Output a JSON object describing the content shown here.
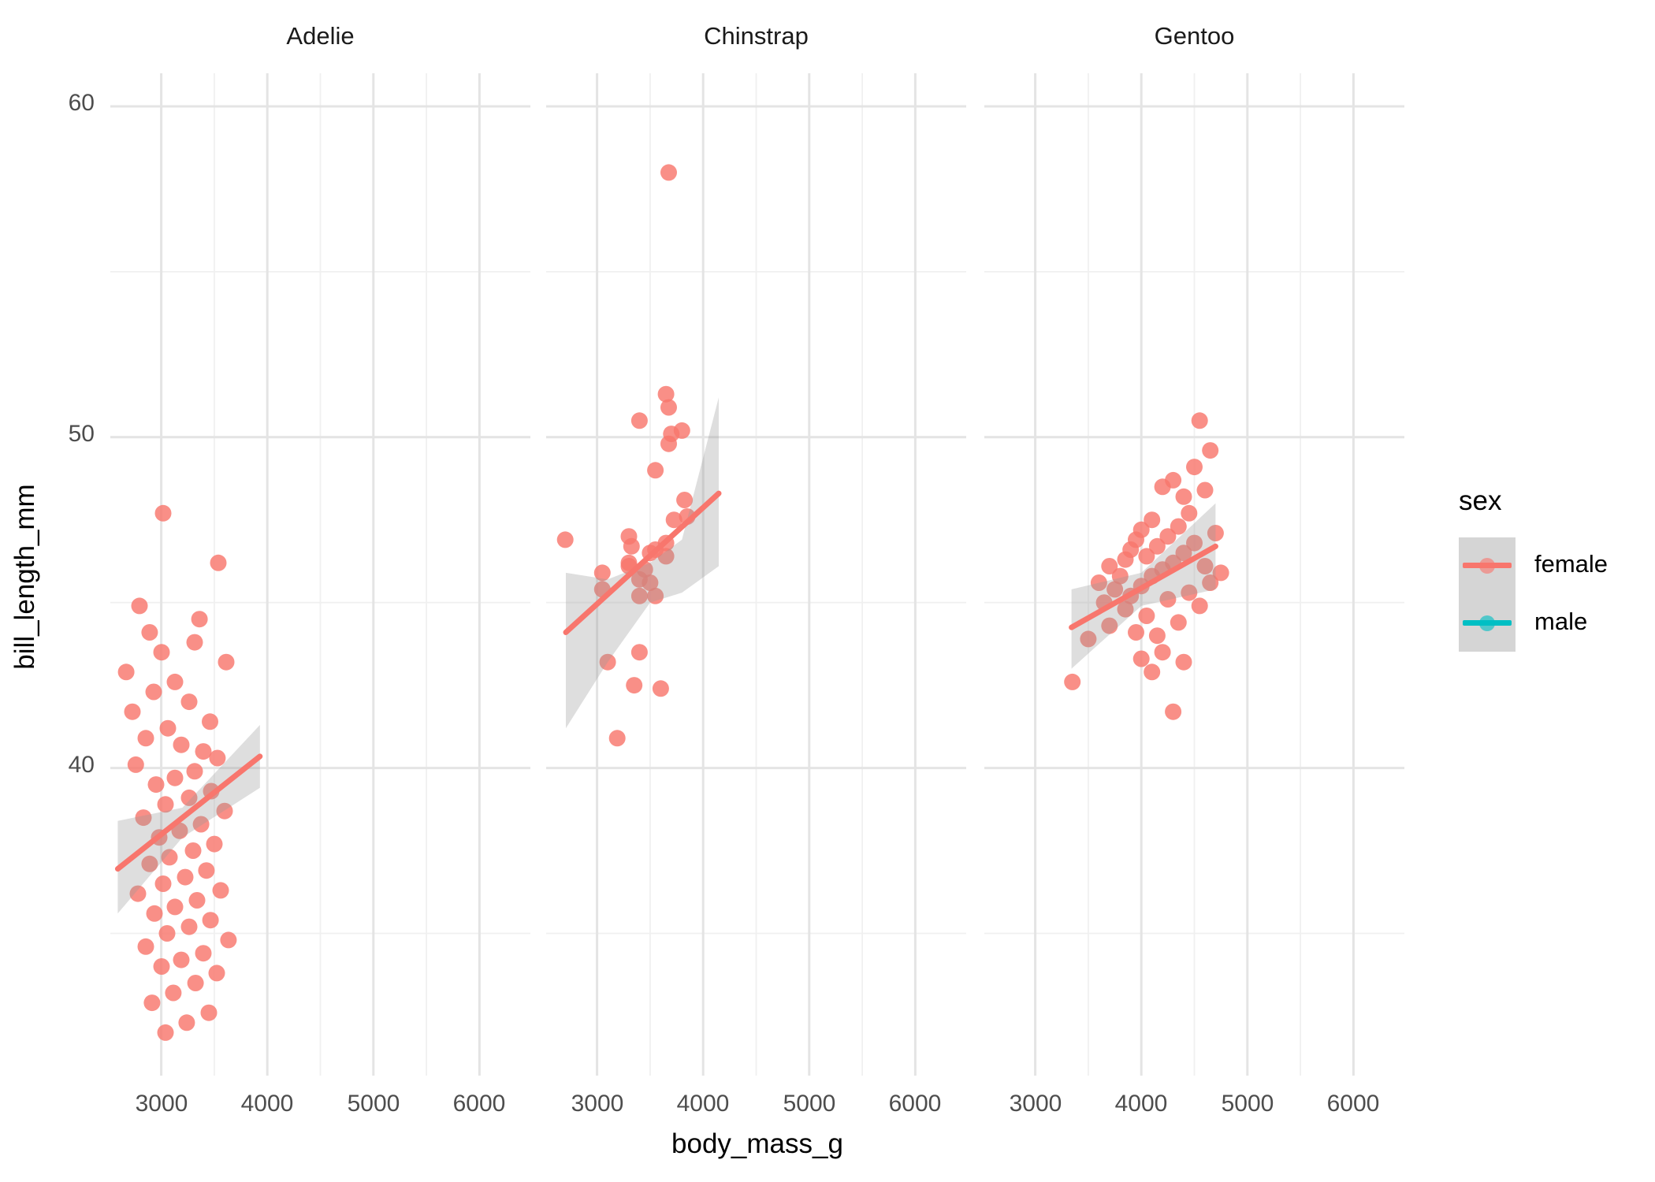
{
  "figure": {
    "x_axis_title": "body_mass_g",
    "y_axis_title": "bill_length_mm",
    "legend": {
      "title": "sex",
      "items": [
        {
          "label": "female",
          "color": "#F8766D"
        },
        {
          "label": "male",
          "color": "#00BFC4"
        }
      ]
    }
  },
  "chart_data": {
    "type": "scatter",
    "title": "",
    "xlabel": "body_mass_g",
    "ylabel": "bill_length_mm",
    "x_range": [
      2520,
      6480
    ],
    "y_range": [
      30.7,
      61.0
    ],
    "x_major_ticks": [
      3000,
      4000,
      5000,
      6000
    ],
    "x_minor_ticks": [
      3500,
      4500,
      5500
    ],
    "y_major_ticks": [
      40,
      50,
      60
    ],
    "y_minor_ticks": [
      35,
      45,
      55
    ],
    "grid": "on",
    "legend_position": "right",
    "point_color": "#F8766D",
    "male_color": "#00BFC4",
    "ribbon_rgb": "153,153,153",
    "ribbon_alpha": 0.32,
    "major_grid_color": "#E4E4E4",
    "minor_grid_color": "#F0F0F0",
    "facets": [
      {
        "label": "Adelie",
        "points": [
          [
            3018,
            47.7
          ],
          [
            3538,
            46.2
          ],
          [
            2795,
            44.9
          ],
          [
            3360,
            44.5
          ],
          [
            2891,
            44.1
          ],
          [
            3315,
            43.8
          ],
          [
            3003,
            43.5
          ],
          [
            3612,
            43.2
          ],
          [
            2669,
            42.9
          ],
          [
            3129,
            42.6
          ],
          [
            2929,
            42.3
          ],
          [
            3263,
            42.0
          ],
          [
            2728,
            41.7
          ],
          [
            3460,
            41.4
          ],
          [
            3062,
            41.2
          ],
          [
            2854,
            40.9
          ],
          [
            3189,
            40.7
          ],
          [
            3397,
            40.5
          ],
          [
            3530,
            40.3
          ],
          [
            2760,
            40.1
          ],
          [
            3315,
            39.9
          ],
          [
            3129,
            39.7
          ],
          [
            2951,
            39.5
          ],
          [
            3471,
            39.3
          ],
          [
            3263,
            39.1
          ],
          [
            3040,
            38.9
          ],
          [
            3597,
            38.7
          ],
          [
            2832,
            38.5
          ],
          [
            3375,
            38.3
          ],
          [
            3174,
            38.1
          ],
          [
            2981,
            37.9
          ],
          [
            3501,
            37.7
          ],
          [
            3300,
            37.5
          ],
          [
            3077,
            37.3
          ],
          [
            2891,
            37.1
          ],
          [
            3426,
            36.9
          ],
          [
            3226,
            36.7
          ],
          [
            3018,
            36.5
          ],
          [
            3560,
            36.3
          ],
          [
            2780,
            36.2
          ],
          [
            3337,
            36.0
          ],
          [
            3129,
            35.8
          ],
          [
            2936,
            35.6
          ],
          [
            3464,
            35.4
          ],
          [
            3263,
            35.2
          ],
          [
            3055,
            35.0
          ],
          [
            3634,
            34.8
          ],
          [
            2854,
            34.6
          ],
          [
            3397,
            34.4
          ],
          [
            3189,
            34.2
          ],
          [
            3003,
            34.0
          ],
          [
            3523,
            33.8
          ],
          [
            3323,
            33.5
          ],
          [
            3114,
            33.2
          ],
          [
            2913,
            32.9
          ],
          [
            3449,
            32.6
          ],
          [
            3240,
            32.3
          ],
          [
            3040,
            32.0
          ]
        ],
        "line": [
          [
            2590,
            36.95
          ],
          [
            3930,
            40.35
          ]
        ],
        "ribbon_upper": [
          [
            2590,
            38.4
          ],
          [
            3200,
            38.8
          ],
          [
            3930,
            41.3
          ]
        ],
        "ribbon_lower": [
          [
            3930,
            39.4
          ],
          [
            3200,
            37.9
          ],
          [
            2590,
            35.6
          ]
        ]
      },
      {
        "label": "Chinstrap",
        "points": [
          [
            3675,
            58.0
          ],
          [
            3650,
            51.3
          ],
          [
            3675,
            50.9
          ],
          [
            3400,
            50.5
          ],
          [
            3800,
            50.2
          ],
          [
            3700,
            50.1
          ],
          [
            3675,
            49.8
          ],
          [
            3550,
            49.0
          ],
          [
            3825,
            48.1
          ],
          [
            3850,
            47.6
          ],
          [
            3725,
            47.5
          ],
          [
            3300,
            47.0
          ],
          [
            2700,
            46.9
          ],
          [
            3325,
            46.7
          ],
          [
            3650,
            46.8
          ],
          [
            3550,
            46.6
          ],
          [
            3500,
            46.5
          ],
          [
            3650,
            46.4
          ],
          [
            3300,
            46.2
          ],
          [
            3300,
            46.1
          ],
          [
            3450,
            46.0
          ],
          [
            3050,
            45.9
          ],
          [
            3400,
            45.7
          ],
          [
            3500,
            45.6
          ],
          [
            3050,
            45.4
          ],
          [
            3550,
            45.2
          ],
          [
            3400,
            45.2
          ],
          [
            3400,
            43.5
          ],
          [
            3100,
            43.2
          ],
          [
            3350,
            42.5
          ],
          [
            3600,
            42.4
          ],
          [
            3190,
            40.9
          ]
        ],
        "line": [
          [
            2706,
            44.1
          ],
          [
            4147,
            48.3
          ]
        ],
        "ribbon_upper": [
          [
            2706,
            45.9
          ],
          [
            3100,
            45.7
          ],
          [
            3500,
            46.2
          ],
          [
            3800,
            46.9
          ],
          [
            4147,
            51.2
          ]
        ],
        "ribbon_lower": [
          [
            4147,
            46.1
          ],
          [
            3800,
            45.3
          ],
          [
            3500,
            45.0
          ],
          [
            3100,
            43.2
          ],
          [
            2706,
            41.2
          ]
        ]
      },
      {
        "label": "Gentoo",
        "points": [
          [
            3350,
            42.6
          ],
          [
            3500,
            43.9
          ],
          [
            3600,
            45.6
          ],
          [
            3650,
            45.0
          ],
          [
            3700,
            46.1
          ],
          [
            3700,
            44.3
          ],
          [
            3750,
            45.4
          ],
          [
            3800,
            45.8
          ],
          [
            3850,
            46.3
          ],
          [
            3850,
            44.8
          ],
          [
            3900,
            46.6
          ],
          [
            3900,
            45.2
          ],
          [
            3950,
            46.9
          ],
          [
            3950,
            44.1
          ],
          [
            4000,
            47.2
          ],
          [
            4000,
            45.5
          ],
          [
            4000,
            43.3
          ],
          [
            4050,
            46.4
          ],
          [
            4050,
            44.6
          ],
          [
            4100,
            47.5
          ],
          [
            4100,
            45.8
          ],
          [
            4100,
            42.9
          ],
          [
            4150,
            46.7
          ],
          [
            4150,
            44.0
          ],
          [
            4200,
            48.5
          ],
          [
            4200,
            46.0
          ],
          [
            4200,
            43.5
          ],
          [
            4250,
            47.0
          ],
          [
            4250,
            45.1
          ],
          [
            4300,
            48.7
          ],
          [
            4300,
            46.2
          ],
          [
            4300,
            41.7
          ],
          [
            4350,
            47.3
          ],
          [
            4350,
            44.4
          ],
          [
            4400,
            48.2
          ],
          [
            4400,
            46.5
          ],
          [
            4400,
            43.2
          ],
          [
            4450,
            47.7
          ],
          [
            4450,
            45.3
          ],
          [
            4500,
            49.1
          ],
          [
            4500,
            46.8
          ],
          [
            4550,
            50.5
          ],
          [
            4550,
            44.9
          ],
          [
            4600,
            48.4
          ],
          [
            4600,
            46.1
          ],
          [
            4650,
            49.6
          ],
          [
            4650,
            45.6
          ],
          [
            4700,
            47.1
          ],
          [
            4750,
            45.9
          ]
        ],
        "line": [
          [
            3342,
            44.25
          ],
          [
            4700,
            46.7
          ]
        ],
        "ribbon_upper": [
          [
            3342,
            45.4
          ],
          [
            4000,
            45.9
          ],
          [
            4700,
            48.0
          ]
        ],
        "ribbon_lower": [
          [
            4700,
            45.4
          ],
          [
            4000,
            44.9
          ],
          [
            3342,
            43.0
          ]
        ]
      }
    ]
  }
}
